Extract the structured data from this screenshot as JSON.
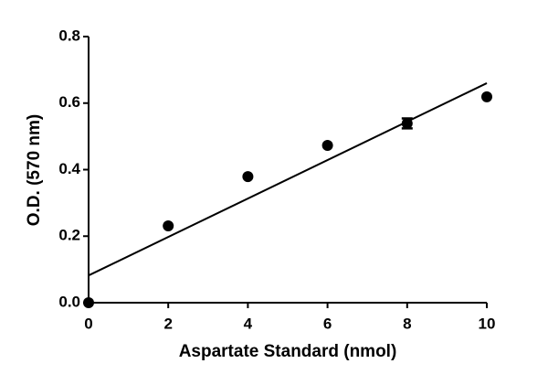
{
  "chart_data": {
    "type": "scatter",
    "x_label": "Aspartate Standard (nmol)",
    "y_label": "O.D. (570 nm)",
    "x": [
      0,
      2,
      4,
      6,
      8,
      10
    ],
    "y": [
      0,
      0.231,
      0.379,
      0.473,
      0.539,
      0.619
    ],
    "errors": [
      null,
      null,
      null,
      null,
      0.015,
      null
    ],
    "color": "#000000",
    "fit": {
      "x": [
        0,
        10
      ],
      "y": [
        0.082,
        0.66
      ]
    },
    "xlim": [
      0,
      10
    ],
    "xticks": [
      0,
      2,
      4,
      6,
      8,
      10
    ],
    "ylim": [
      0,
      0.8
    ],
    "yticks": [
      {
        "value": 0,
        "label": "0.0"
      },
      {
        "value": 0.2,
        "label": "0.2"
      },
      {
        "value": 0.4,
        "label": "0.4"
      },
      {
        "value": 0.6,
        "label": "0.6"
      },
      {
        "value": 0.8,
        "label": "0.8"
      }
    ],
    "grid": false
  }
}
